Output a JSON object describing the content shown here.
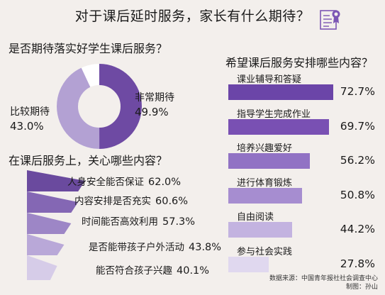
{
  "title": "对于课后延时服务，家长有什么期待？",
  "colors": {
    "background": "#f3efec",
    "primary_purple": "#6e4aa3",
    "light_purple": "#b3a1d3",
    "accent": "#7c56b4"
  },
  "icons": {
    "title_icon": "document-checklist-icon"
  },
  "chart_data": [
    {
      "type": "pie",
      "title": "是否期待落实好学生课后服务？",
      "categories": [
        "非常期待",
        "比较期待"
      ],
      "values": [
        49.9,
        43.0
      ],
      "value_labels": [
        "49.9%",
        "43.0%"
      ],
      "colors": [
        "#6e4aa3",
        "#b3a1d3"
      ]
    },
    {
      "type": "bar",
      "title": "在课后服务上，关心哪些内容？",
      "categories": [
        "人身安全能否保证",
        "内容安排是否充实",
        "时间能否高效利用",
        "是否能带孩子户外活动",
        "能否符合孩子兴趣"
      ],
      "values": [
        62.0,
        60.6,
        57.3,
        43.8,
        40.1
      ],
      "value_labels": [
        "62.0%",
        "60.6%",
        "57.3%",
        "43.8%",
        "40.1%"
      ],
      "colors": [
        "#6a4a9e",
        "#8467b4",
        "#9d86c6",
        "#b9a8d8",
        "#d6cce8"
      ]
    },
    {
      "type": "bar",
      "title": "希望课后服务安排哪些内容？",
      "categories": [
        "课业辅导和答疑",
        "指导学生完成作业",
        "培养兴趣爱好",
        "进行体育锻炼",
        "自由阅读",
        "参与社会实践"
      ],
      "values": [
        72.7,
        69.7,
        56.2,
        50.8,
        44.2,
        27.8
      ],
      "value_labels": [
        "72.7%",
        "69.7%",
        "56.2%",
        "50.8%",
        "44.2%",
        "27.8%"
      ],
      "colors": [
        "#6b45a8",
        "#7950b3",
        "#9172c4",
        "#a68dd0",
        "#c3b3e0",
        "#e0d8ef"
      ]
    }
  ],
  "footer": {
    "source": "数据来源：中国青年报社社会调查中心",
    "credit": "制图：孙山"
  }
}
